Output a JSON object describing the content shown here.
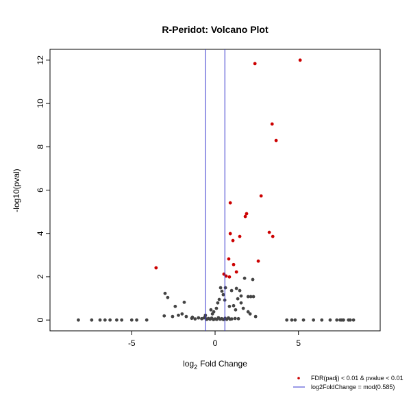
{
  "chart_data": {
    "type": "scatter",
    "title": "R-Peridot: Volcano Plot",
    "xlabel": {
      "base": "log",
      "subscript": "2",
      "rest": "Fold Change"
    },
    "ylabel": "-log10(pval)",
    "xlim": [
      -9.9,
      9.9
    ],
    "ylim": [
      -0.5,
      12.5
    ],
    "xticks": [
      -5,
      0,
      5
    ],
    "yticks": [
      0,
      2,
      4,
      6,
      8,
      10,
      12
    ],
    "grid": false,
    "legend": "bottom-right",
    "series": [
      {
        "name": "FDR(padj) < 0.01 & pvalue < 0.01",
        "color": "#cc0000",
        "x": [
          5.1,
          2.39,
          3.42,
          3.66,
          2.76,
          0.91,
          1.89,
          1.81,
          3.25,
          0.91,
          1.48,
          3.46,
          1.07,
          0.82,
          2.59,
          1.11,
          1.28,
          -3.54,
          0.53,
          0.66,
          0.86
        ],
        "values": [
          12.0,
          11.84,
          9.05,
          8.29,
          5.73,
          5.41,
          4.91,
          4.78,
          4.05,
          3.99,
          3.86,
          3.86,
          3.67,
          2.82,
          2.72,
          2.56,
          2.22,
          2.41,
          2.12,
          2.03,
          1.99
        ]
      },
      {
        "color": "#444444",
        "x": [
          -8.2,
          -7.4,
          -6.9,
          -6.6,
          -6.3,
          -5.9,
          -5.6,
          -5.0,
          -4.7,
          -4.1,
          4.3,
          4.6,
          4.8,
          5.3,
          5.9,
          6.4,
          6.9,
          7.3,
          7.5,
          7.6,
          7.7,
          8.0,
          8.1,
          8.3,
          -3.0,
          -2.84,
          -1.85,
          -2.39,
          -3.05,
          -2.55,
          -2.2,
          -1.98,
          -1.73,
          -1.36,
          -0.99,
          -0.66,
          0.33,
          0.41,
          0.49,
          0.58,
          0.16,
          0.25,
          0.62,
          1.28,
          1.48,
          0.99,
          1.36,
          1.56,
          1.77,
          1.98,
          2.14,
          2.26,
          2.3,
          1.56,
          1.11,
          0.86,
          1.23,
          1.69,
          1.98,
          2.1,
          2.43,
          -0.08,
          -0.25,
          -0.16,
          0.08,
          -0.58,
          -1.4,
          -1.2,
          -1.0,
          -0.8,
          -0.6,
          -0.4,
          -0.2,
          0.0,
          0.2,
          0.4,
          0.6,
          0.8,
          1.0,
          1.2,
          1.4,
          -0.5,
          -0.3,
          -0.1,
          0.1,
          0.3,
          0.5,
          0.7,
          0.9
        ],
        "values": [
          0,
          0,
          0,
          0,
          0,
          0,
          0,
          0,
          0,
          0,
          0,
          0,
          0,
          0,
          0,
          0,
          0,
          0,
          0,
          0,
          0,
          0,
          0,
          0,
          1.23,
          1.04,
          0.82,
          0.63,
          0.19,
          0.16,
          0.22,
          0.28,
          0.16,
          0.13,
          0.1,
          0.1,
          1.49,
          1.33,
          1.17,
          0.92,
          0.79,
          0.95,
          1.49,
          1.46,
          1.36,
          1.36,
          0.98,
          1.11,
          1.93,
          1.08,
          1.08,
          1.87,
          1.08,
          0.79,
          0.66,
          0.63,
          0.47,
          0.54,
          0.38,
          0.28,
          0.16,
          0.38,
          0.47,
          0.28,
          0.54,
          0.22,
          0.08,
          0.05,
          0.1,
          0.06,
          0.12,
          0.07,
          0.09,
          0.05,
          0.11,
          0.06,
          0.08,
          0.1,
          0.05,
          0.07,
          0.06,
          0.03,
          0.04,
          0.02,
          0.03,
          0.04,
          0.02,
          0.03,
          0.04
        ]
      }
    ],
    "vlines": {
      "name": "log2FoldChange = mod(0.585)",
      "color": "#3333cc",
      "values": [
        -0.585,
        0.585
      ]
    }
  }
}
